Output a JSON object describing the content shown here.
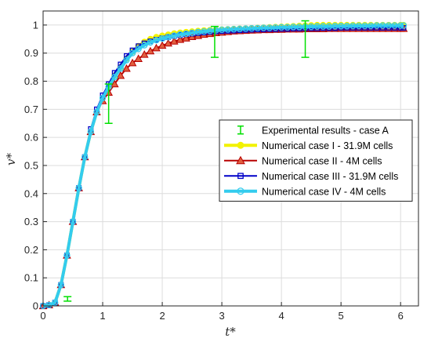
{
  "chart_data": {
    "type": "line",
    "title": "",
    "xlabel": "t*",
    "ylabel": "v*",
    "xlim": [
      0,
      6.3
    ],
    "ylim": [
      0,
      1.05
    ],
    "grid": true,
    "legend_position": "center-right",
    "x_ticks": [
      "0",
      "1",
      "2",
      "3",
      "4",
      "5",
      "6"
    ],
    "y_ticks": [
      "0",
      "0.1",
      "0.2",
      "0.3",
      "0.4",
      "0.5",
      "0.6",
      "0.7",
      "0.8",
      "0.9",
      "1"
    ],
    "experimental": {
      "name": "Experimental results - case A",
      "color": "#00e000",
      "points": [
        {
          "x": 0.41,
          "y": 0.025,
          "err": 0.008
        },
        {
          "x": 1.1,
          "y": 0.72,
          "err": 0.07
        },
        {
          "x": 2.88,
          "y": 0.94,
          "err": 0.055
        },
        {
          "x": 4.4,
          "y": 0.95,
          "err": 0.065
        }
      ]
    },
    "series": [
      {
        "name": "Numerical case I - 31.9M cells",
        "color": "#f2f200",
        "marker": "circle",
        "x": [
          0,
          0.1,
          0.2,
          0.3,
          0.4,
          0.5,
          0.6,
          0.7,
          0.8,
          0.9,
          1.0,
          1.1,
          1.2,
          1.3,
          1.4,
          1.5,
          1.6,
          1.7,
          1.8,
          1.9,
          2.0,
          2.1,
          2.2,
          2.3,
          2.4,
          2.5,
          2.6,
          2.7,
          2.8,
          2.9,
          3.0,
          3.1,
          3.2,
          3.3,
          3.4,
          3.5,
          3.6,
          3.7,
          3.8,
          3.9,
          4.0,
          4.1,
          4.2,
          4.3,
          4.4,
          4.5,
          4.6,
          4.7,
          4.8,
          4.9,
          5.0,
          5.1,
          5.2,
          5.3,
          5.4,
          5.5,
          5.6,
          5.7,
          5.8,
          5.9,
          6.0,
          6.05
        ],
        "y": [
          0.0,
          0.003,
          0.012,
          0.075,
          0.18,
          0.3,
          0.42,
          0.53,
          0.62,
          0.69,
          0.74,
          0.78,
          0.82,
          0.85,
          0.88,
          0.905,
          0.925,
          0.94,
          0.95,
          0.957,
          0.962,
          0.966,
          0.97,
          0.973,
          0.975,
          0.977,
          0.979,
          0.981,
          0.982,
          0.983,
          0.984,
          0.985,
          0.986,
          0.987,
          0.988,
          0.989,
          0.99,
          0.991,
          0.992,
          0.993,
          0.994,
          0.995,
          0.996,
          0.997,
          0.998,
          0.999,
          1.0,
          1.0,
          1.0,
          1.0,
          1.0,
          1.0,
          1.0,
          1.0,
          1.0,
          1.0,
          1.0,
          1.0,
          1.0,
          1.0,
          1.0,
          1.0
        ]
      },
      {
        "name": "Numerical case II - 4M cells",
        "color": "#b80000",
        "marker": "triangle",
        "x": [
          0,
          0.1,
          0.2,
          0.3,
          0.4,
          0.5,
          0.6,
          0.7,
          0.8,
          0.9,
          1.0,
          1.1,
          1.2,
          1.3,
          1.4,
          1.5,
          1.6,
          1.7,
          1.8,
          1.9,
          2.0,
          2.1,
          2.2,
          2.3,
          2.4,
          2.5,
          2.6,
          2.7,
          2.8,
          2.9,
          3.0,
          3.1,
          3.2,
          3.3,
          3.4,
          3.5,
          3.6,
          3.7,
          3.8,
          3.9,
          4.0,
          4.1,
          4.2,
          4.3,
          4.4,
          4.5,
          4.6,
          4.7,
          4.8,
          4.9,
          5.0,
          5.1,
          5.2,
          5.3,
          5.4,
          5.5,
          5.6,
          5.7,
          5.8,
          5.9,
          6.0,
          6.05
        ],
        "y": [
          0.0,
          0.003,
          0.012,
          0.075,
          0.18,
          0.3,
          0.42,
          0.53,
          0.62,
          0.69,
          0.73,
          0.76,
          0.79,
          0.82,
          0.845,
          0.865,
          0.88,
          0.895,
          0.907,
          0.918,
          0.927,
          0.935,
          0.942,
          0.948,
          0.953,
          0.958,
          0.962,
          0.966,
          0.969,
          0.972,
          0.974,
          0.976,
          0.978,
          0.979,
          0.98,
          0.981,
          0.982,
          0.983,
          0.983,
          0.984,
          0.984,
          0.985,
          0.985,
          0.985,
          0.986,
          0.986,
          0.986,
          0.986,
          0.987,
          0.987,
          0.987,
          0.987,
          0.987,
          0.987,
          0.987,
          0.987,
          0.987,
          0.987,
          0.987,
          0.987,
          0.987,
          0.987
        ]
      },
      {
        "name": "Numerical case III - 31.9M cells",
        "color": "#0000c8",
        "marker": "square",
        "x": [
          0,
          0.1,
          0.2,
          0.3,
          0.4,
          0.5,
          0.6,
          0.7,
          0.8,
          0.9,
          1.0,
          1.1,
          1.2,
          1.3,
          1.4,
          1.5,
          1.6,
          1.7,
          1.8,
          1.9,
          2.0,
          2.1,
          2.2,
          2.3,
          2.4,
          2.5,
          2.6,
          2.7,
          2.8,
          2.9,
          3.0,
          3.1,
          3.2,
          3.3,
          3.4,
          3.5,
          3.6,
          3.7,
          3.8,
          3.9,
          4.0,
          4.1,
          4.2,
          4.3,
          4.4,
          4.5,
          4.6,
          4.7,
          4.8,
          4.9,
          5.0,
          5.1,
          5.2,
          5.3,
          5.4,
          5.5,
          5.6,
          5.7,
          5.8,
          5.9,
          6.0,
          6.05
        ],
        "y": [
          0.0,
          0.003,
          0.012,
          0.075,
          0.18,
          0.3,
          0.42,
          0.53,
          0.63,
          0.7,
          0.75,
          0.79,
          0.83,
          0.86,
          0.89,
          0.91,
          0.925,
          0.935,
          0.942,
          0.948,
          0.953,
          0.957,
          0.961,
          0.964,
          0.967,
          0.969,
          0.971,
          0.973,
          0.975,
          0.977,
          0.978,
          0.979,
          0.98,
          0.981,
          0.982,
          0.983,
          0.984,
          0.984,
          0.985,
          0.985,
          0.986,
          0.986,
          0.987,
          0.987,
          0.988,
          0.988,
          0.988,
          0.989,
          0.989,
          0.989,
          0.99,
          0.99,
          0.99,
          0.99,
          0.99,
          0.99,
          0.99,
          0.99,
          0.99,
          0.99,
          0.99,
          0.99
        ]
      },
      {
        "name": "Numerical case IV - 4M cells",
        "color": "#33ccee",
        "marker": "circle-open",
        "x": [
          0,
          0.1,
          0.2,
          0.3,
          0.4,
          0.5,
          0.6,
          0.7,
          0.8,
          0.9,
          1.0,
          1.1,
          1.2,
          1.3,
          1.4,
          1.5,
          1.6,
          1.7,
          1.8,
          1.9,
          2.0,
          2.1,
          2.2,
          2.3,
          2.4,
          2.5,
          2.6,
          2.7,
          2.8,
          2.9,
          3.0,
          3.1,
          3.2,
          3.3,
          3.4,
          3.5,
          3.6,
          3.7,
          3.8,
          3.9,
          4.0,
          4.1,
          4.2,
          4.3,
          4.4,
          4.5,
          4.6,
          4.7,
          4.8,
          4.9,
          5.0,
          5.1,
          5.2,
          5.3,
          5.4,
          5.5,
          5.6,
          5.7,
          5.8,
          5.9,
          6.0,
          6.05
        ],
        "y": [
          0.0,
          0.003,
          0.012,
          0.075,
          0.18,
          0.3,
          0.42,
          0.53,
          0.62,
          0.69,
          0.74,
          0.78,
          0.815,
          0.845,
          0.875,
          0.9,
          0.915,
          0.928,
          0.938,
          0.946,
          0.952,
          0.957,
          0.962,
          0.966,
          0.969,
          0.972,
          0.975,
          0.977,
          0.979,
          0.981,
          0.983,
          0.984,
          0.985,
          0.986,
          0.987,
          0.988,
          0.989,
          0.99,
          0.99,
          0.991,
          0.992,
          0.992,
          0.993,
          0.993,
          0.994,
          0.994,
          0.995,
          0.995,
          0.995,
          0.996,
          0.996,
          0.996,
          0.997,
          0.997,
          0.997,
          0.997,
          0.998,
          0.998,
          0.998,
          0.998,
          0.998,
          0.998
        ]
      }
    ]
  }
}
